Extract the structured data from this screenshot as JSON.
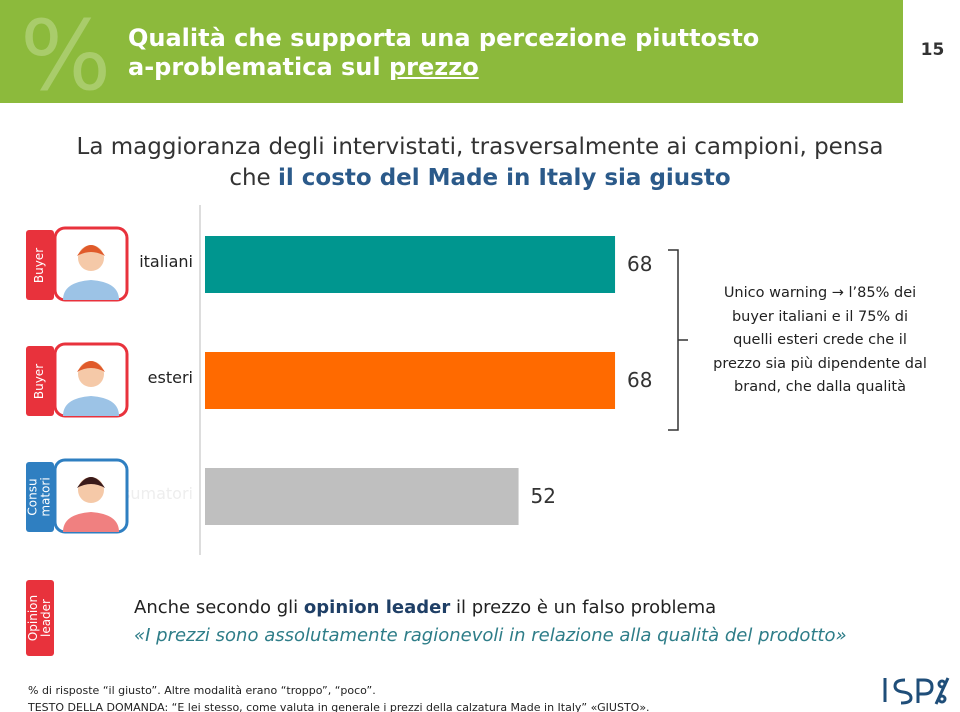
{
  "header": {
    "title_line1": "Qualità che supporta una percezione piuttosto",
    "title_line2": "a-problematica sul ",
    "title_underlined": "prezzo",
    "page_number": "15"
  },
  "subtitle": {
    "line1": "La maggioranza degli intervistati, trasversalmente ai campioni, pensa",
    "line2_start": "che ",
    "line2_bold": "il costo del Made in Italy sia giusto"
  },
  "chart_data": {
    "type": "bar",
    "orientation": "horizontal",
    "categories": [
      "italiani",
      "esteri",
      "consumatori"
    ],
    "values": [
      68,
      68,
      52
    ],
    "colors": [
      "#00968f",
      "#ff6a00",
      "#bfbfbf"
    ],
    "xlim": [
      0,
      100
    ],
    "group_labels": [
      "Buyer",
      "Buyer",
      "Consu matori"
    ]
  },
  "note": {
    "lines": [
      "Unico warning → l’85% dei",
      "buyer italiani e il 75% di",
      "quelli esteri crede che il",
      "prezzo sia più dipendente dal",
      "brand, che dalla qualità"
    ]
  },
  "opinion": {
    "group_label": "Opinion leader",
    "line1_start": "Anche secondo gli ",
    "line1_bold": "opinion leader",
    "line1_end": " il prezzo è un falso problema",
    "quote": "«I prezzi sono assolutamente ragionevoli in relazione alla qualità del prodotto»"
  },
  "footer": {
    "line1": "% di risposte “il giusto”. Altre modalità erano “troppo”, “poco”.",
    "line2": "TESTO DELLA DOMANDA:  “E lei stesso, come valuta in generale i prezzi della calzatura Made in Italy” «GIUSTO»."
  }
}
